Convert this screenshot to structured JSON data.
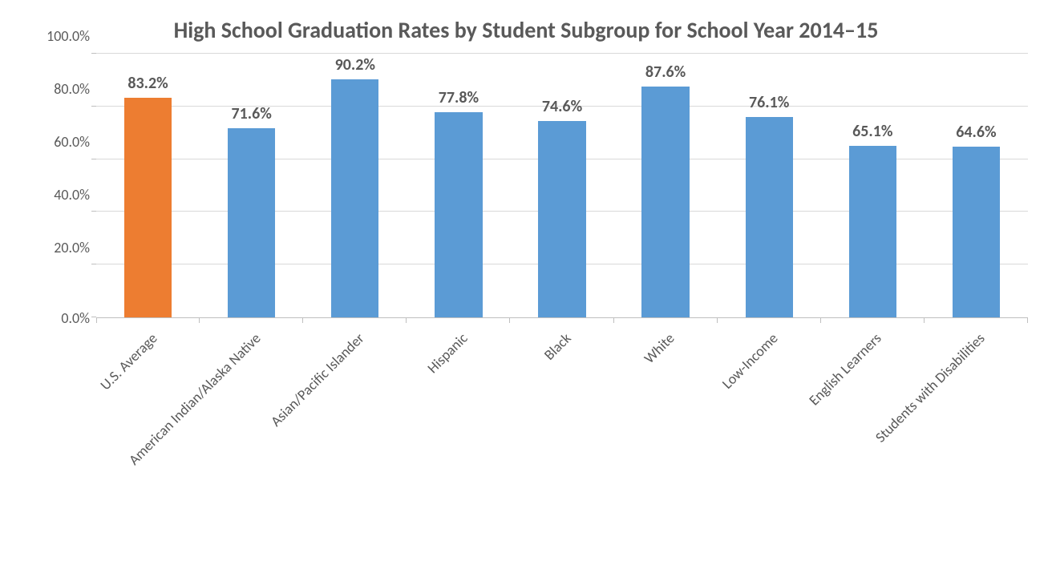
{
  "chart": {
    "type": "bar",
    "title": "High School Graduation Rates by Student Subgroup for School Year 2014–15",
    "title_fontsize": 28,
    "title_color": "#595959",
    "title_weight": "bold",
    "background_color": "#ffffff",
    "grid_color": "#d9d9d9",
    "axis_color": "#bfbfbf",
    "label_color": "#595959",
    "ylim": [
      0,
      100
    ],
    "ytick_step": 20,
    "yticks": [
      "0.0%",
      "20.0%",
      "40.0%",
      "60.0%",
      "80.0%",
      "100.0%"
    ],
    "ytick_fontsize": 18,
    "xlabel_fontsize": 18,
    "xlabel_rotation_deg": -45,
    "data_label_fontsize": 20,
    "data_label_weight": "bold",
    "bar_width_ratio": 0.46,
    "categories": [
      "U.S. Average",
      "American Indian/Alaska Native",
      "Asian/Pacific Islander",
      "Hispanic",
      "Black",
      "White",
      "Low-Income",
      "English Learners",
      "Students with Disabilities"
    ],
    "values": [
      83.2,
      71.6,
      90.2,
      77.8,
      74.6,
      87.6,
      76.1,
      65.1,
      64.6
    ],
    "value_labels": [
      "83.2%",
      "71.6%",
      "90.2%",
      "77.8%",
      "74.6%",
      "87.6%",
      "76.1%",
      "65.1%",
      "64.6%"
    ],
    "bar_colors": [
      "#ed7d31",
      "#5b9bd5",
      "#5b9bd5",
      "#5b9bd5",
      "#5b9bd5",
      "#5b9bd5",
      "#5b9bd5",
      "#5b9bd5",
      "#5b9bd5"
    ]
  }
}
